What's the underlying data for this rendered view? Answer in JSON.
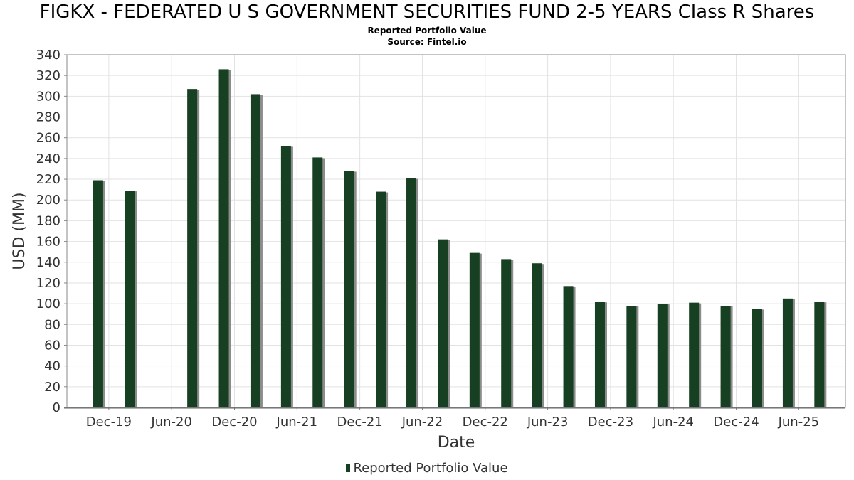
{
  "title": "FIGKX - FEDERATED U S GOVERNMENT SECURITIES FUND 2-5 YEARS Class R Shares",
  "subtitle": "Reported Portfolio Value",
  "source": "Source: Fintel.io",
  "colors": {
    "bar": "#173f21",
    "bar_shadow": "#8c8c8c",
    "grid": "#e2e2e2",
    "axis": "#888888"
  },
  "chart_data": {
    "type": "bar",
    "xlabel": "Date",
    "ylabel": "USD (MM)",
    "ylim": [
      0,
      340
    ],
    "yticks": [
      0,
      20,
      40,
      60,
      80,
      100,
      120,
      140,
      160,
      180,
      200,
      220,
      240,
      260,
      280,
      300,
      320,
      340
    ],
    "xlim": [
      "2019-08-01",
      "2025-10-15"
    ],
    "xticks": [
      {
        "label": "Dec-19",
        "date": "2019-12-01"
      },
      {
        "label": "Jun-20",
        "date": "2020-06-01"
      },
      {
        "label": "Dec-20",
        "date": "2020-12-01"
      },
      {
        "label": "Jun-21",
        "date": "2021-06-01"
      },
      {
        "label": "Dec-21",
        "date": "2021-12-01"
      },
      {
        "label": "Jun-22",
        "date": "2022-06-01"
      },
      {
        "label": "Dec-22",
        "date": "2022-12-01"
      },
      {
        "label": "Jun-23",
        "date": "2023-06-01"
      },
      {
        "label": "Dec-23",
        "date": "2023-12-01"
      },
      {
        "label": "Jun-24",
        "date": "2024-06-01"
      },
      {
        "label": "Dec-24",
        "date": "2024-12-01"
      },
      {
        "label": "Jun-25",
        "date": "2025-06-01"
      }
    ],
    "grid": true,
    "legend_position": "bottom-center",
    "series": [
      {
        "name": "Reported Portfolio Value",
        "points": [
          {
            "date": "2019-10-31",
            "value": 219
          },
          {
            "date": "2020-01-31",
            "value": 209
          },
          {
            "date": "2020-07-31",
            "value": 307
          },
          {
            "date": "2020-10-31",
            "value": 326
          },
          {
            "date": "2021-01-31",
            "value": 302
          },
          {
            "date": "2021-04-30",
            "value": 252
          },
          {
            "date": "2021-07-31",
            "value": 241
          },
          {
            "date": "2021-10-31",
            "value": 228
          },
          {
            "date": "2022-01-31",
            "value": 208
          },
          {
            "date": "2022-04-30",
            "value": 221
          },
          {
            "date": "2022-07-31",
            "value": 162
          },
          {
            "date": "2022-10-31",
            "value": 149
          },
          {
            "date": "2023-01-31",
            "value": 143
          },
          {
            "date": "2023-04-30",
            "value": 139
          },
          {
            "date": "2023-07-31",
            "value": 117
          },
          {
            "date": "2023-10-31",
            "value": 102
          },
          {
            "date": "2024-01-31",
            "value": 98
          },
          {
            "date": "2024-04-30",
            "value": 100
          },
          {
            "date": "2024-07-31",
            "value": 101
          },
          {
            "date": "2024-10-31",
            "value": 98
          },
          {
            "date": "2025-01-31",
            "value": 95
          },
          {
            "date": "2025-04-30",
            "value": 105
          },
          {
            "date": "2025-07-31",
            "value": 102
          }
        ]
      }
    ]
  }
}
